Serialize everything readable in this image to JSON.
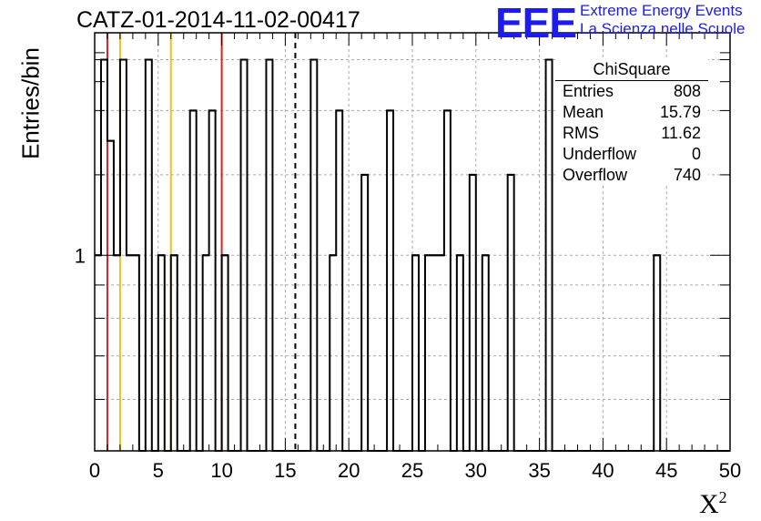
{
  "chart_data": {
    "type": "bar",
    "title": "CATZ-01-2014-11-02-00417",
    "xlabel": "X",
    "xlabel_superscript": "2",
    "ylabel": "Entries/bin",
    "xlim": [
      0,
      50
    ],
    "ylim": [
      0.5,
      2.2
    ],
    "y_scale": "log",
    "grid": true,
    "bin_width": 0.5,
    "x_ticks": [
      0,
      5,
      10,
      15,
      20,
      25,
      30,
      35,
      40,
      45,
      50
    ],
    "y_tick_labels": [
      "1"
    ],
    "bins": [
      {
        "x": 0.0,
        "y": 1
      },
      {
        "x": 0.5,
        "y": 2
      },
      {
        "x": 1.0,
        "y": 1.5
      },
      {
        "x": 1.5,
        "y": 1
      },
      {
        "x": 2.0,
        "y": 2
      },
      {
        "x": 2.5,
        "y": 1
      },
      {
        "x": 3.0,
        "y": 1
      },
      {
        "x": 4.0,
        "y": 2
      },
      {
        "x": 5.0,
        "y": 1
      },
      {
        "x": 6.0,
        "y": 1
      },
      {
        "x": 7.5,
        "y": 1.67
      },
      {
        "x": 8.5,
        "y": 1
      },
      {
        "x": 9.0,
        "y": 1.67
      },
      {
        "x": 10.0,
        "y": 1
      },
      {
        "x": 11.5,
        "y": 2
      },
      {
        "x": 13.5,
        "y": 2
      },
      {
        "x": 17.0,
        "y": 2
      },
      {
        "x": 18.5,
        "y": 1
      },
      {
        "x": 19.0,
        "y": 1.67
      },
      {
        "x": 21.0,
        "y": 1.33
      },
      {
        "x": 23.0,
        "y": 1.67
      },
      {
        "x": 25.0,
        "y": 1
      },
      {
        "x": 26.0,
        "y": 1
      },
      {
        "x": 26.5,
        "y": 1
      },
      {
        "x": 27.0,
        "y": 1
      },
      {
        "x": 27.5,
        "y": 1.67
      },
      {
        "x": 28.5,
        "y": 1
      },
      {
        "x": 29.5,
        "y": 1.33
      },
      {
        "x": 30.5,
        "y": 1
      },
      {
        "x": 32.5,
        "y": 1.33
      },
      {
        "x": 35.5,
        "y": 2
      },
      {
        "x": 44.0,
        "y": 1
      }
    ],
    "vertical_lines": [
      {
        "x": 1.0,
        "color": "#dd2222",
        "style": "solid"
      },
      {
        "x": 2.0,
        "color": "#f0c020",
        "style": "solid"
      },
      {
        "x": 6.0,
        "color": "#f0c020",
        "style": "solid"
      },
      {
        "x": 10.0,
        "color": "#dd2222",
        "style": "solid"
      },
      {
        "x": 15.79,
        "color": "#000000",
        "style": "dashed"
      }
    ]
  },
  "logo": {
    "mark": "EEE",
    "line1": "Extreme Energy Events",
    "line2": "La Scienza nelle Scuole",
    "color": "#1c1cf0"
  },
  "stats": {
    "title": "ChiSquare",
    "rows": [
      {
        "label": "Entries",
        "value": "808"
      },
      {
        "label": "Mean",
        "value": "15.79"
      },
      {
        "label": "RMS",
        "value": "11.62"
      },
      {
        "label": "Underflow",
        "value": "0"
      },
      {
        "label": "Overflow",
        "value": "740"
      }
    ]
  }
}
